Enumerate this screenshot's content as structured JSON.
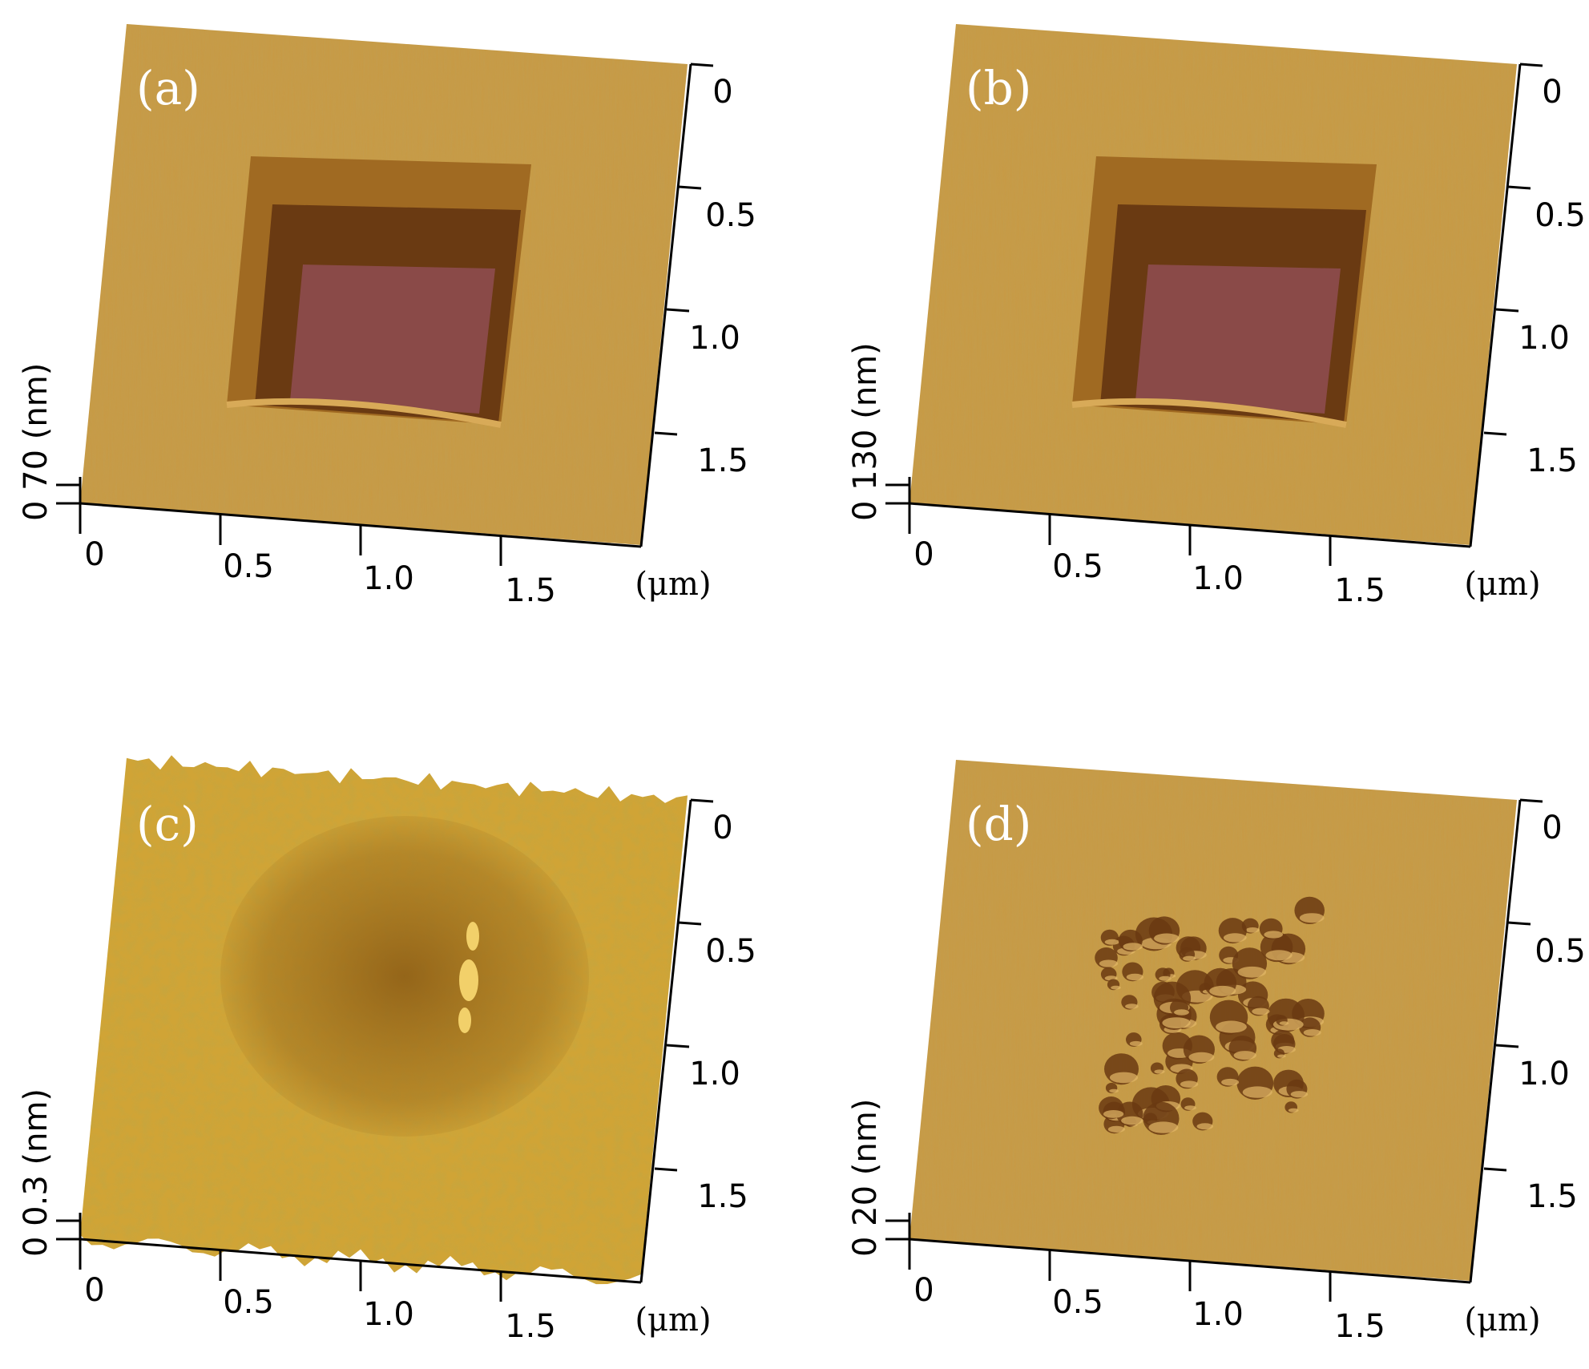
{
  "panels": [
    {
      "label": "(a)",
      "z_label": "0 70 (nm)",
      "kind": "pit"
    },
    {
      "label": "(b)",
      "z_label": "0 130 (nm)",
      "kind": "pit"
    },
    {
      "label": "(c)",
      "z_label": "0 0.3 (nm)",
      "kind": "rough"
    },
    {
      "label": "(d)",
      "z_label": "0 20 (nm)",
      "kind": "holes"
    }
  ],
  "axes": {
    "x_ticks": [
      "0",
      "0.5",
      "1.0",
      "1.5"
    ],
    "y_ticks": [
      "0",
      "0.5",
      "1.0",
      "1.5"
    ],
    "unit": "(μm)"
  },
  "colors": {
    "surface": "#c89a44",
    "surface_light": "#d9ad55",
    "pit_wall": "#a06a22",
    "pit_dark": "#6a3a12",
    "pit_floor": "#8a4a48",
    "rough_light": "#e0b84a",
    "rough_dark": "#8a5a12"
  }
}
